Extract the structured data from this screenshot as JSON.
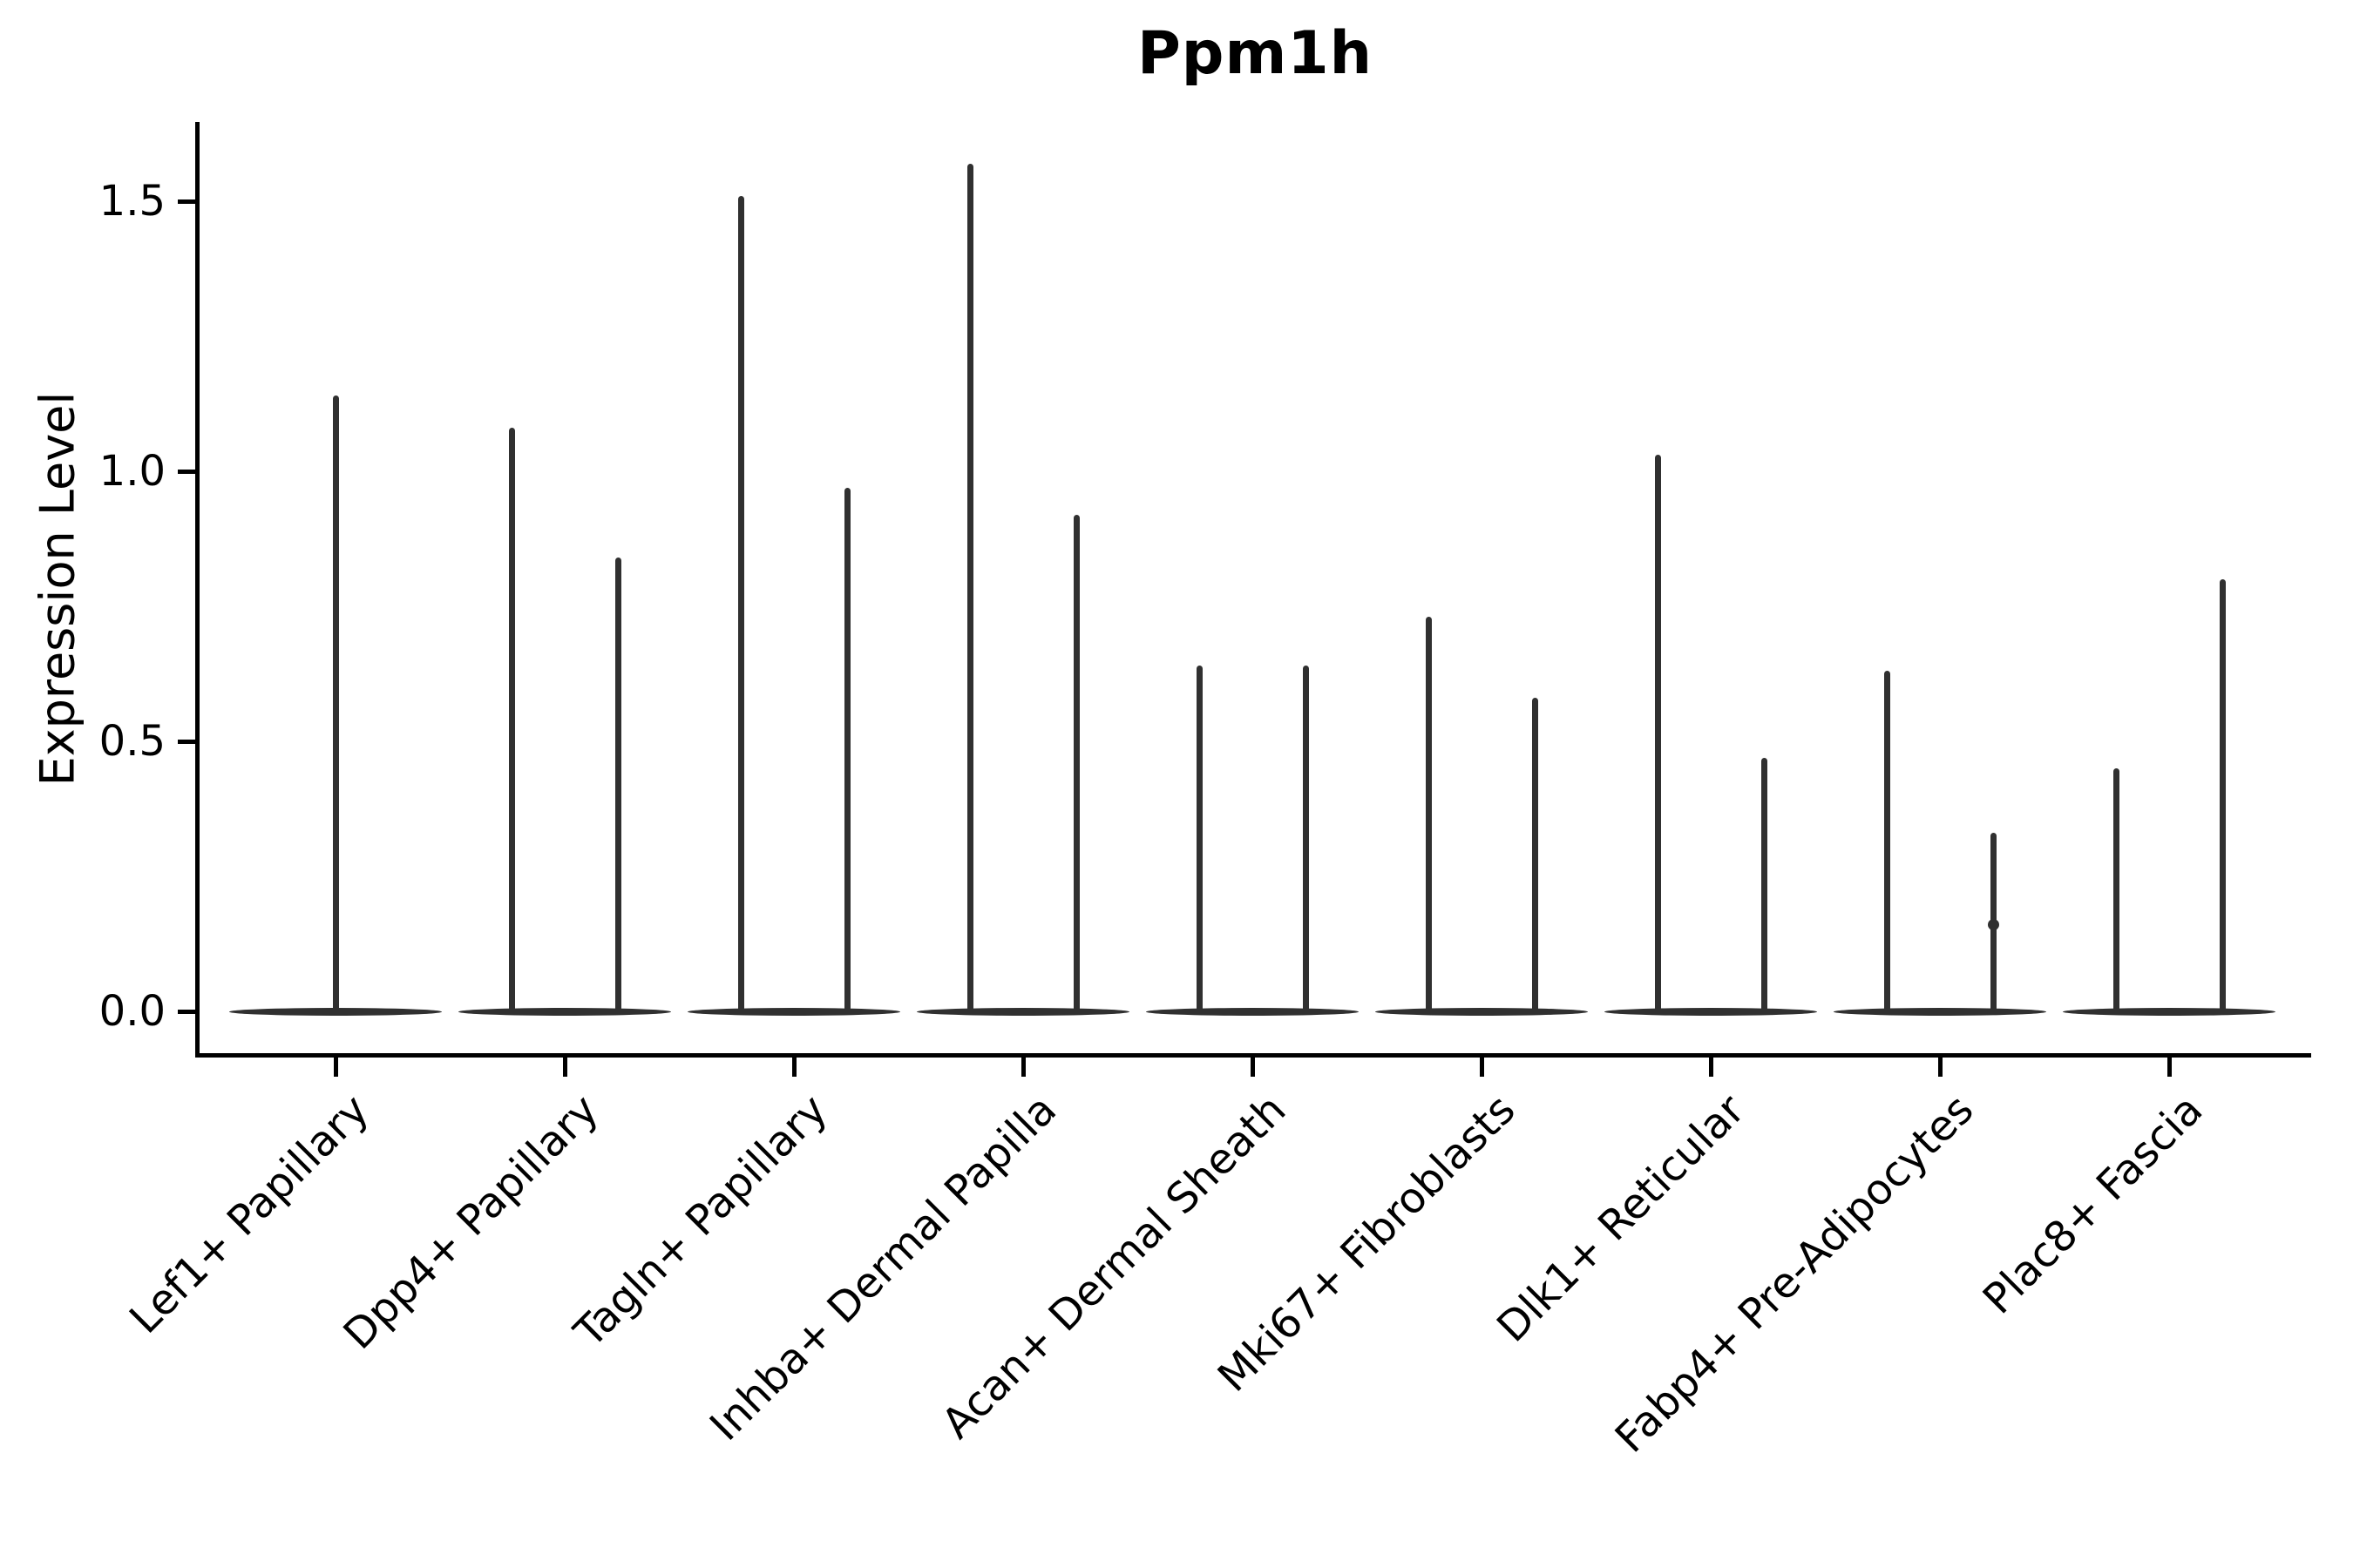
{
  "title": "Ppm1h",
  "y_axis": {
    "label": "Expression Level",
    "ticks": [
      "0.0",
      "0.5",
      "1.0",
      "1.5"
    ]
  },
  "chart_data": {
    "type": "violin",
    "title": "Ppm1h",
    "xlabel": "",
    "ylabel": "Expression Level",
    "ylim": [
      -0.08,
      1.71
    ],
    "y_tick_values": [
      0.0,
      0.5,
      1.0,
      1.5
    ],
    "grid": false,
    "legend": "none",
    "violin_color": "#303030",
    "baseline_value": 0.0,
    "description": "Thin violins: wide flat base at expression 0 with narrow spikes up to the max expression value. First category has a single full-width violin; all others have two side-by-side (split) violins.",
    "categories": [
      {
        "label": "Lef1+ Papillary",
        "spikes": [
          {
            "position": "full",
            "max": 1.14
          }
        ]
      },
      {
        "label": "Dpp4+ Papillary",
        "spikes": [
          {
            "position": "left",
            "max": 1.08
          },
          {
            "position": "right",
            "max": 0.84
          }
        ]
      },
      {
        "label": "Tagln+ Papillary",
        "spikes": [
          {
            "position": "left",
            "max": 1.51
          },
          {
            "position": "right",
            "max": 0.97
          }
        ]
      },
      {
        "label": "Inhba+ Dermal Papilla",
        "spikes": [
          {
            "position": "left",
            "max": 1.57
          },
          {
            "position": "right",
            "max": 0.92
          }
        ]
      },
      {
        "label": "Acan+ Dermal Sheath",
        "spikes": [
          {
            "position": "left",
            "max": 0.64
          },
          {
            "position": "right",
            "max": 0.64
          }
        ]
      },
      {
        "label": "Mki67+ Fibroblasts",
        "spikes": [
          {
            "position": "left",
            "max": 0.73
          },
          {
            "position": "right",
            "max": 0.58
          }
        ]
      },
      {
        "label": "Dlk1+ Reticular",
        "spikes": [
          {
            "position": "left",
            "max": 1.03
          },
          {
            "position": "right",
            "max": 0.47
          }
        ]
      },
      {
        "label": "Fabp4+ Pre-Adipocytes",
        "spikes": [
          {
            "position": "left",
            "max": 0.63
          },
          {
            "position": "right",
            "max": 0.33
          }
        ],
        "points": [
          {
            "position": "right",
            "value": 0.16
          }
        ]
      },
      {
        "label": "Plac8+ Fascia",
        "spikes": [
          {
            "position": "left",
            "max": 0.45
          },
          {
            "position": "right",
            "max": 0.8
          }
        ]
      }
    ]
  }
}
